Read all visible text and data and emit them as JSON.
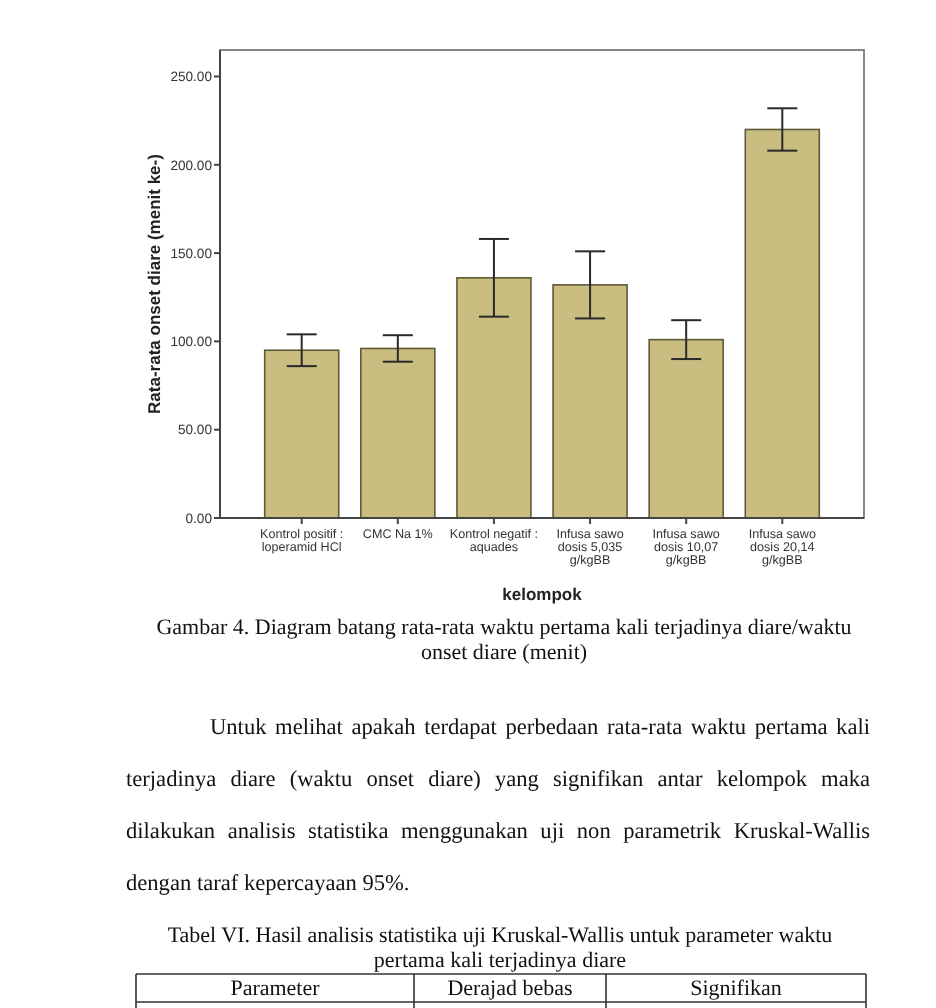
{
  "chart_data": {
    "type": "bar",
    "xlabel": "kelompok",
    "ylabel": "Rata-rata onset diare (menit ke-)",
    "categories": [
      "Kontrol positif :\nloperamid HCl",
      "CMC Na 1%",
      "Kontrol negatif :\naquades",
      "Infusa sawo\ndosis 5,035\ng/kgBB",
      "Infusa sawo\ndosis 10,07\ng/kgBB",
      "Infusa sawo\ndosis 20,14\ng/kgBB"
    ],
    "values": [
      95,
      96,
      136,
      132,
      101,
      220
    ],
    "errors": [
      9,
      7.5,
      22,
      19,
      11,
      12
    ],
    "color": "#c9bd80",
    "ylim": [
      0,
      265
    ],
    "yticks": [
      {
        "value": 0,
        "label": "0.00"
      },
      {
        "value": 50,
        "label": "50.00"
      },
      {
        "value": 100,
        "label": "100.00"
      },
      {
        "value": 150,
        "label": "150.00"
      },
      {
        "value": 200,
        "label": "200.00"
      },
      {
        "value": 250,
        "label": "250.00"
      }
    ],
    "annotations": [
      "Gambar 4. Diagram batang rata-rata waktu pertama kali terjadinya diare/waktu onset diare (menit)",
      "Untuk melihat apakah terdapat perbedaan rata-rata waktu pertama kali terjadinya diare (waktu onset diare) yang signifikan antar kelompok maka dilakukan analisis statistika menggunakan uji non parametrik Kruskal-Wallis dengan taraf kepercayaan 95%.",
      "Tabel VI. Hasil analisis statistika uji Kruskal-Wallis untuk parameter waktu pertama kali terjadinya diare",
      "Parameter",
      "Derajad bebas",
      "Signifikan"
    ]
  }
}
